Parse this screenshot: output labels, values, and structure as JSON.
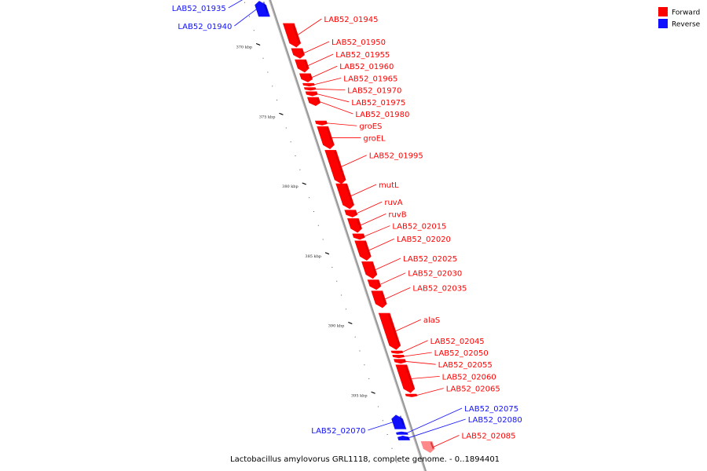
{
  "colors": {
    "forward": "#ff0000",
    "reverse": "#1010ff",
    "backbone": "#999999",
    "forward_fade": "#ff8888"
  },
  "legend": {
    "forward_label": "Forward",
    "reverse_label": "Reverse"
  },
  "caption": "Lactobacillus amylovorus GRL1118, complete genome. - 0..1894401",
  "ticks": [
    {
      "label": "370 kbp",
      "pos": 370
    },
    {
      "label": "375 kbp",
      "pos": 375
    },
    {
      "label": "380 kbp",
      "pos": 380
    },
    {
      "label": "385 kbp",
      "pos": 385
    },
    {
      "label": "390 kbp",
      "pos": 390
    },
    {
      "label": "395 kbp",
      "pos": 395
    }
  ],
  "genes": [
    {
      "name": "LAB52_01935",
      "strand": "reverse",
      "start": 366.1,
      "end": 366.7
    },
    {
      "name": "LAB52_01940",
      "strand": "reverse",
      "start": 366.9,
      "end": 368.0
    },
    {
      "name": "LAB52_01945",
      "strand": "forward",
      "start": 368.5,
      "end": 370.2
    },
    {
      "name": "LAB52_01950",
      "strand": "forward",
      "start": 370.3,
      "end": 371.0
    },
    {
      "name": "LAB52_01955",
      "strand": "forward",
      "start": 371.1,
      "end": 372.0
    },
    {
      "name": "LAB52_01960",
      "strand": "forward",
      "start": 372.1,
      "end": 372.7
    },
    {
      "name": "LAB52_01965",
      "strand": "forward",
      "start": 372.8,
      "end": 373.0
    },
    {
      "name": "LAB52_01970",
      "strand": "forward",
      "start": 373.1,
      "end": 373.3
    },
    {
      "name": "LAB52_01975",
      "strand": "forward",
      "start": 373.4,
      "end": 373.7
    },
    {
      "name": "LAB52_01980",
      "strand": "forward",
      "start": 373.8,
      "end": 374.4
    },
    {
      "name": "groES",
      "strand": "forward",
      "start": 375.5,
      "end": 375.8
    },
    {
      "name": "groEL",
      "strand": "forward",
      "start": 375.9,
      "end": 377.5
    },
    {
      "name": "LAB52_01995",
      "strand": "forward",
      "start": 377.6,
      "end": 380.0
    },
    {
      "name": "mutL",
      "strand": "forward",
      "start": 380.0,
      "end": 381.8
    },
    {
      "name": "ruvA",
      "strand": "forward",
      "start": 381.9,
      "end": 382.4
    },
    {
      "name": "ruvB",
      "strand": "forward",
      "start": 382.5,
      "end": 383.5
    },
    {
      "name": "LAB52_02015",
      "strand": "forward",
      "start": 383.6,
      "end": 384.0
    },
    {
      "name": "LAB52_02020",
      "strand": "forward",
      "start": 384.1,
      "end": 385.5
    },
    {
      "name": "LAB52_02025",
      "strand": "forward",
      "start": 385.6,
      "end": 386.8
    },
    {
      "name": "LAB52_02030",
      "strand": "forward",
      "start": 386.9,
      "end": 387.6
    },
    {
      "name": "LAB52_02035",
      "strand": "forward",
      "start": 387.7,
      "end": 388.9
    },
    {
      "name": "alaS",
      "strand": "forward",
      "start": 389.3,
      "end": 391.9
    },
    {
      "name": "LAB52_02045",
      "strand": "forward",
      "start": 392.0,
      "end": 392.2
    },
    {
      "name": "LAB52_02050",
      "strand": "forward",
      "start": 392.3,
      "end": 392.5
    },
    {
      "name": "LAB52_02055",
      "strand": "forward",
      "start": 392.6,
      "end": 392.9
    },
    {
      "name": "LAB52_02060",
      "strand": "forward",
      "start": 393.0,
      "end": 395.0
    },
    {
      "name": "LAB52_02065",
      "strand": "forward",
      "start": 395.1,
      "end": 395.3
    },
    {
      "name": "LAB52_02070",
      "strand": "reverse",
      "start": 396.6,
      "end": 397.6
    },
    {
      "name": "LAB52_02075",
      "strand": "reverse",
      "start": 397.8,
      "end": 398.0
    },
    {
      "name": "LAB52_02080",
      "strand": "reverse",
      "start": 398.1,
      "end": 398.4
    },
    {
      "name": "LAB52_02085",
      "strand": "forward",
      "start": 398.5,
      "end": 399.3
    }
  ]
}
